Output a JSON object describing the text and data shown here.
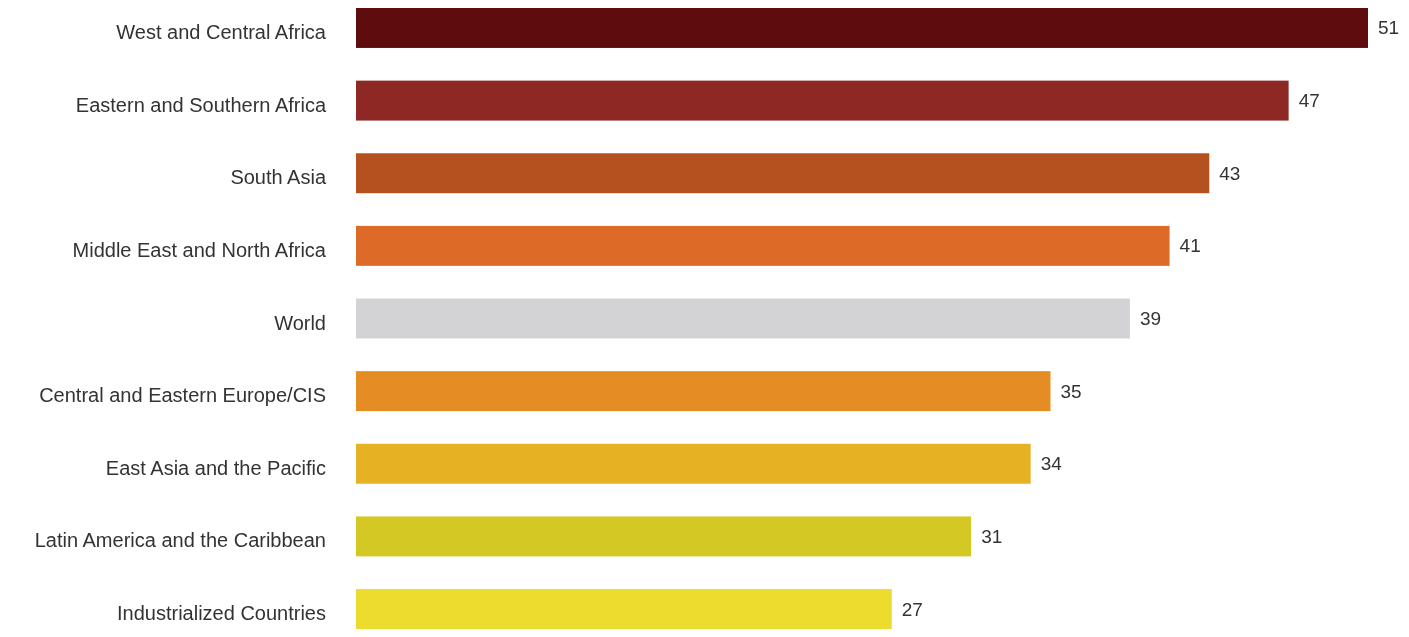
{
  "chart_data": {
    "type": "bar",
    "orientation": "horizontal",
    "data_labels": true,
    "categories": [
      "West and Central Africa",
      "Eastern and Southern Africa",
      "South Asia",
      "Middle East and North Africa",
      "World",
      "Central and Eastern Europe/CIS",
      "East Asia and the Pacific",
      "Latin America and the Caribbean",
      "Industrialized Countries"
    ],
    "values": [
      51,
      47,
      43,
      41,
      39,
      35,
      34,
      31,
      27
    ],
    "colors": [
      "#5e0c0e",
      "#8e2824",
      "#b5501f",
      "#dd6a27",
      "#d3d3d5",
      "#e68c25",
      "#e6b224",
      "#d4c824",
      "#ecdc2e"
    ]
  }
}
